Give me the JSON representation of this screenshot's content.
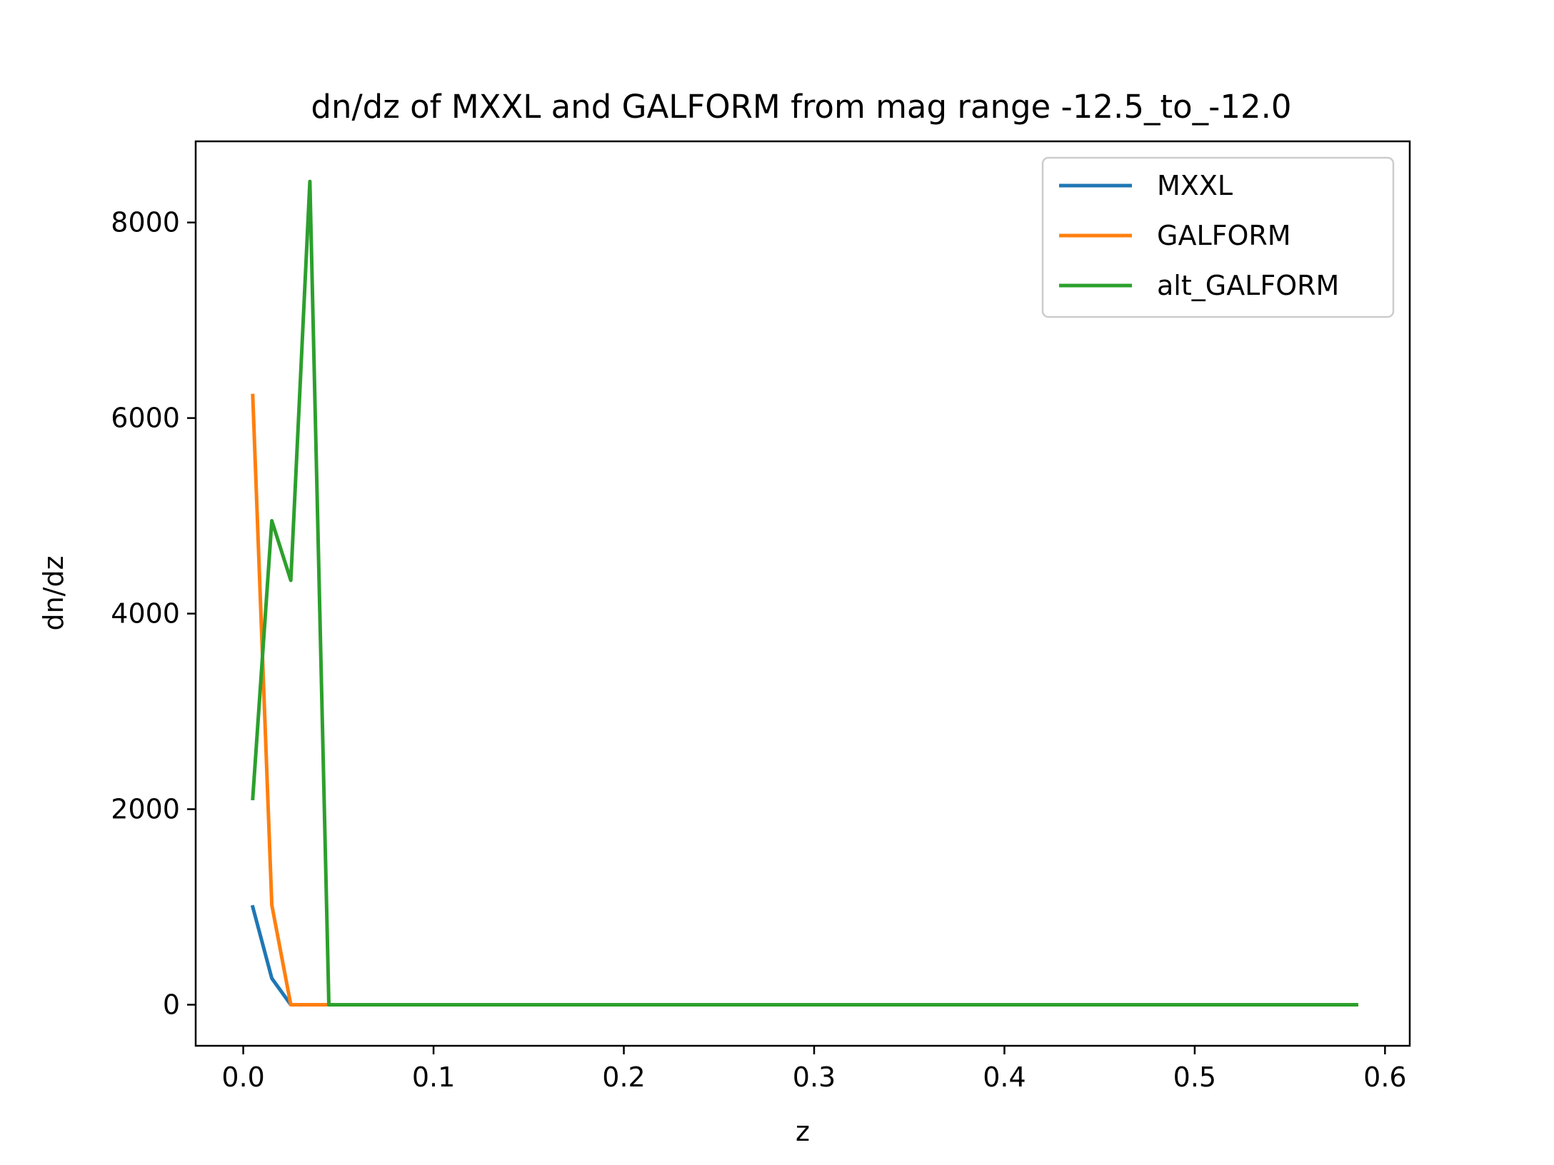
{
  "chart_data": {
    "type": "line",
    "title": "dn/dz of MXXL and GALFORM from mag range -12.5_to_-12.0",
    "xlabel": "z",
    "ylabel": "dn/dz",
    "xlim": [
      -0.025,
      0.613
    ],
    "ylim": [
      -420,
      8830
    ],
    "x_ticks": [
      0.0,
      0.1,
      0.2,
      0.3,
      0.4,
      0.5,
      0.6
    ],
    "x_tick_labels": [
      "0.0",
      "0.1",
      "0.2",
      "0.3",
      "0.4",
      "0.5",
      "0.6"
    ],
    "y_ticks": [
      0,
      2000,
      4000,
      6000,
      8000
    ],
    "y_tick_labels": [
      "0",
      "2000",
      "4000",
      "6000",
      "8000"
    ],
    "grid": false,
    "legend_position": "top-right",
    "series": [
      {
        "name": "MXXL",
        "color": "#1f77b4",
        "x": [
          0.005,
          0.015,
          0.025,
          0.035,
          0.045,
          0.585
        ],
        "y": [
          1000,
          270,
          0,
          0,
          0,
          0
        ]
      },
      {
        "name": "GALFORM",
        "color": "#ff7f0e",
        "x": [
          0.005,
          0.015,
          0.025,
          0.035,
          0.045,
          0.585
        ],
        "y": [
          6230,
          1020,
          0,
          0,
          0,
          0
        ]
      },
      {
        "name": "alt_GALFORM",
        "color": "#2ca02c",
        "x": [
          0.005,
          0.015,
          0.025,
          0.035,
          0.045,
          0.585
        ],
        "y": [
          2110,
          4950,
          4340,
          8420,
          0,
          0
        ]
      }
    ]
  }
}
